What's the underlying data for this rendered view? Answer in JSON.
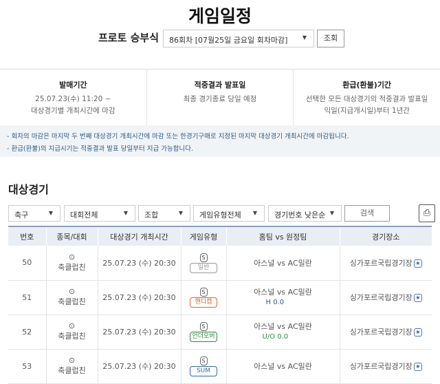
{
  "title": "게임일정",
  "selector": {
    "label": "프로토 승부식",
    "round_value": "86회차 [07월25일 금요일 회차마감]",
    "submit": "조회"
  },
  "info": [
    {
      "title": "발매기간",
      "line1": "25.07.23(수) 11:20 ~",
      "line2": "대상경기별 개최시간에 마감"
    },
    {
      "title": "적중결과 발표일",
      "line1": "최종 경기종료 당일 예정",
      "line2": ""
    },
    {
      "title": "환급(환불)기간",
      "line1": "선택한 모든 대상경기의 적중결과 발표일",
      "line2": "익일(지급개시일)부터 1년간"
    }
  ],
  "notes": [
    "- 회차의 마감은 마지막 두 번째 대상경기 개최시간에 마감 또는 한경기구매로 지정된 마지막 대상경기 개최시간에 마감됩니다.",
    "- 환급(환불)의 지급시기는 적중결과 발표 당일부터 지급 가능합니다."
  ],
  "section_title": "대상경기",
  "filters": {
    "sport": "축구",
    "league": "대회전체",
    "combo": "조합",
    "game_type": "게임유형전체",
    "sort": "경기번호 낮은순",
    "search": "검색"
  },
  "table": {
    "headers": [
      "번호",
      "종목/대회",
      "대상경기 개최시간",
      "게임유형",
      "홈팀 vs 원정팀",
      "경기장소"
    ],
    "rows": [
      {
        "no": "50",
        "league": "축클럽친",
        "time": "25.07.23 (수) 20:30",
        "type": "일반",
        "type_color": "#999999",
        "match": "아스널 vs AC밀란",
        "sub": "",
        "sub_color": "",
        "venue": "싱가포르국립경기장"
      },
      {
        "no": "51",
        "league": "축클럽친",
        "time": "25.07.23 (수) 20:30",
        "type": "핸디캡",
        "type_color": "#e0662a",
        "match": "아스널 vs AC밀란",
        "sub": "H 0.0",
        "sub_color": "#2a5aa0",
        "venue": "싱가포르국립경기장"
      },
      {
        "no": "52",
        "league": "축클럽친",
        "time": "25.07.23 (수) 20:30",
        "type": "언더오버",
        "type_color": "#2e8b3a",
        "match": "아스널 vs AC밀란",
        "sub": "U/O 0.0",
        "sub_color": "#2e8b3a",
        "venue": "싱가포르국립경기장"
      },
      {
        "no": "53",
        "league": "축클럽친",
        "time": "25.07.23 (수) 20:30",
        "type": "SUM",
        "type_color": "#2a6ab0",
        "match": "아스널 vs AC밀란",
        "sub": "",
        "sub_color": "",
        "venue": "싱가포르국립경기장"
      }
    ]
  }
}
